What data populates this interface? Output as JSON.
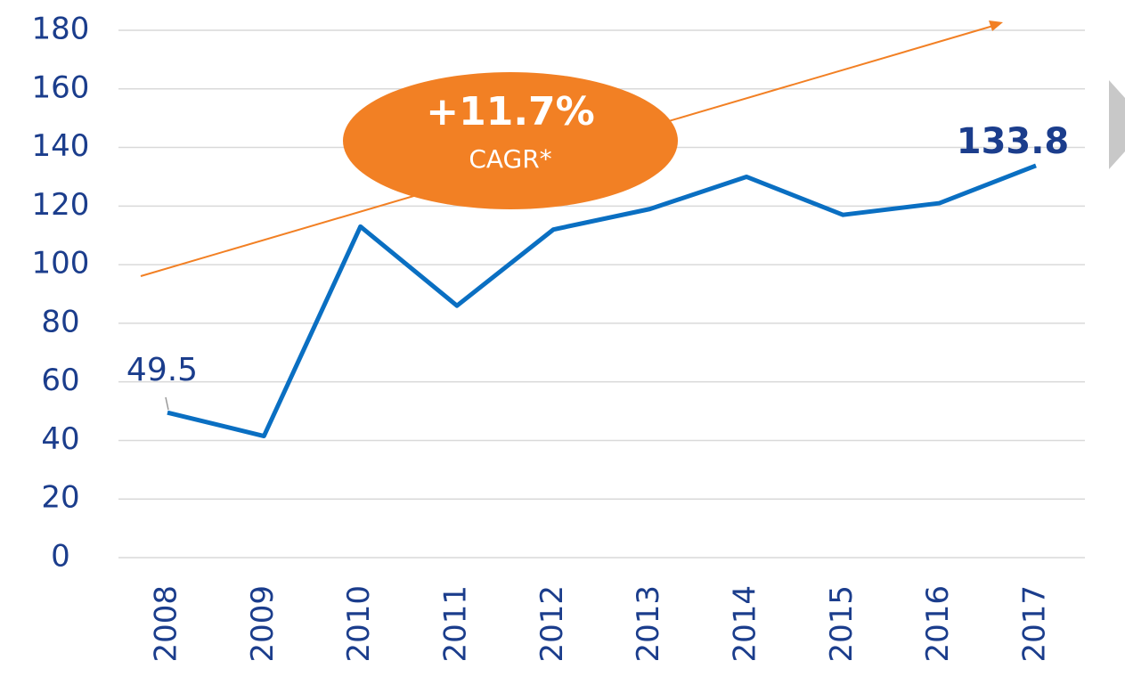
{
  "chart_data": {
    "type": "line",
    "categories": [
      "2008",
      "2009",
      "2010",
      "2011",
      "2012",
      "2013",
      "2014",
      "2015",
      "2016",
      "2017"
    ],
    "series": [
      {
        "name": "Value",
        "color": "#0a6fc2",
        "values": [
          49.5,
          41.5,
          113,
          86,
          112,
          119,
          130,
          117,
          121,
          133.8
        ]
      }
    ],
    "ylim": [
      0,
      180
    ],
    "yticks": [
      0,
      20,
      40,
      60,
      80,
      100,
      120,
      140,
      160,
      180
    ],
    "grid": true,
    "annotations": [
      "+11.7%",
      "CAGR*"
    ]
  }
}
